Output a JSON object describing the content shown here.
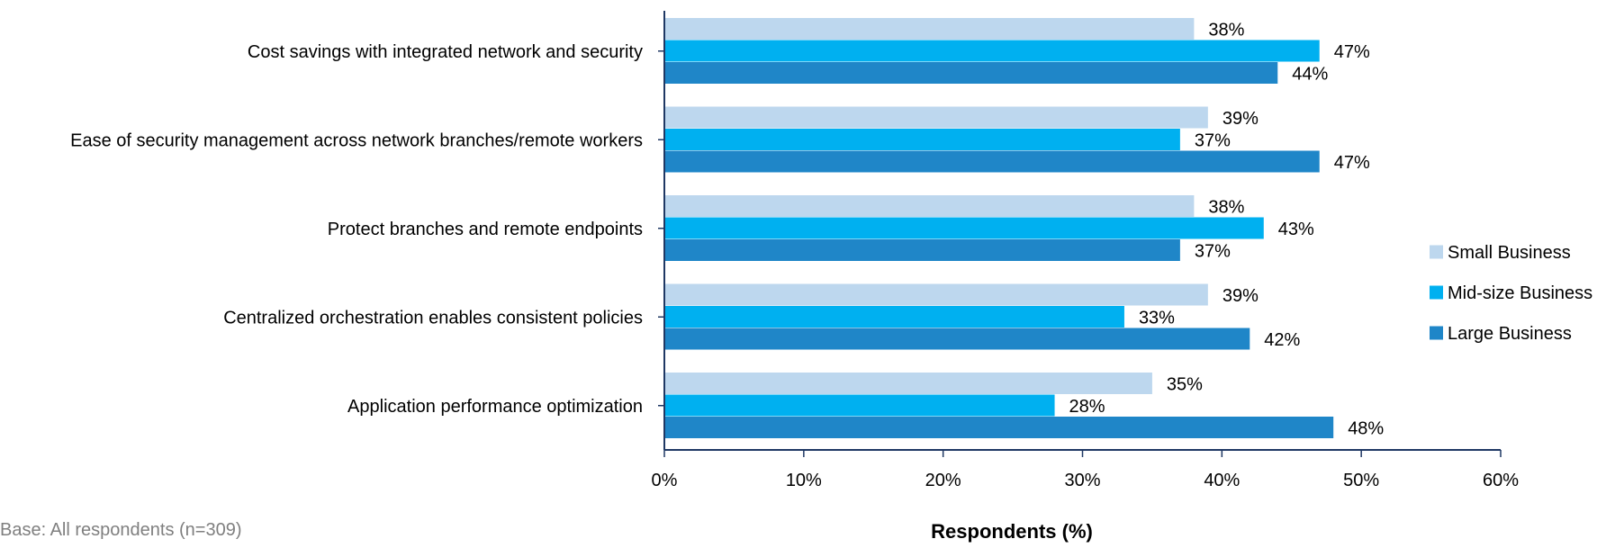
{
  "chart_data": {
    "type": "bar",
    "orientation": "horizontal",
    "categories": [
      "Cost savings with integrated network and security",
      "Ease of security management across network branches/remote workers",
      "Protect branches and remote endpoints",
      "Centralized orchestration enables consistent policies",
      "Application performance optimization"
    ],
    "series": [
      {
        "name": "Small Business",
        "color": "#bdd7ee",
        "values": [
          38,
          39,
          38,
          39,
          35
        ]
      },
      {
        "name": "Mid-size Business",
        "color": "#00b0f0",
        "values": [
          47,
          37,
          43,
          33,
          28
        ]
      },
      {
        "name": "Large Business",
        "color": "#1f86c8",
        "values": [
          44,
          47,
          37,
          42,
          48
        ]
      }
    ],
    "value_suffix": "%",
    "xlabel": "Respondents (%)",
    "ylabel": "",
    "xlim": [
      0,
      60
    ],
    "xticks": [
      0,
      10,
      20,
      30,
      40,
      50,
      60
    ],
    "xtick_labels": [
      "0%",
      "10%",
      "20%",
      "30%",
      "40%",
      "50%",
      "60%"
    ],
    "grid": false,
    "legend_position": "right"
  },
  "footnote": "Base: All respondents (n=309)"
}
